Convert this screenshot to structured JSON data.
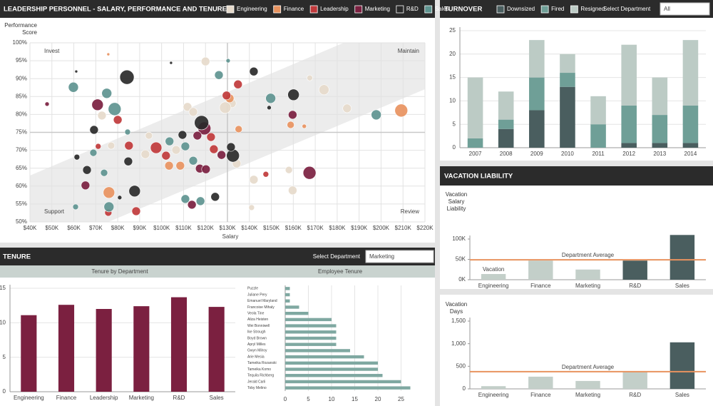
{
  "chart_data": [
    {
      "type": "scatter",
      "title": "LEADERSHIP PERSONNEL - SALARY, PERFORMANCE AND TENURE",
      "x_label": "Salary",
      "y_label": "Performance Score",
      "quadrant_labels": {
        "top_left": "Invest",
        "top_right": "Maintain",
        "bottom_left": "Support",
        "bottom_right": "Review"
      },
      "reference_x": 130000,
      "reference_y": 75,
      "xlim": [
        40000,
        220000
      ],
      "ylim": [
        50,
        100
      ],
      "grid": true,
      "legend": "top-right",
      "xticks": [
        {
          "value": 40000,
          "label": "$40K"
        },
        {
          "value": 50000,
          "label": "$50K"
        },
        {
          "value": 60000,
          "label": "$60K"
        },
        {
          "value": 70000,
          "label": "$70K"
        },
        {
          "value": 80000,
          "label": "$80K"
        },
        {
          "value": 90000,
          "label": "$90K"
        },
        {
          "value": 100000,
          "label": "$100K"
        },
        {
          "value": 110000,
          "label": "$110K"
        },
        {
          "value": 120000,
          "label": "$120K"
        },
        {
          "value": 130000,
          "label": "$130K"
        },
        {
          "value": 140000,
          "label": "$140K"
        },
        {
          "value": 150000,
          "label": "$150K"
        },
        {
          "value": 160000,
          "label": "$160K"
        },
        {
          "value": 170000,
          "label": "$170K"
        },
        {
          "value": 180000,
          "label": "$180K"
        },
        {
          "value": 190000,
          "label": "$190K"
        },
        {
          "value": 200000,
          "label": "$200K"
        },
        {
          "value": 210000,
          "label": "$210K"
        },
        {
          "value": 220000,
          "label": "$220K"
        }
      ],
      "yticks": [
        {
          "value": 50,
          "label": "50%"
        },
        {
          "value": 55,
          "label": "55%"
        },
        {
          "value": 60,
          "label": "60%"
        },
        {
          "value": 65,
          "label": "65%"
        },
        {
          "value": 70,
          "label": "70%"
        },
        {
          "value": 75,
          "label": "75%"
        },
        {
          "value": 80,
          "label": "80%"
        },
        {
          "value": 85,
          "label": "85%"
        },
        {
          "value": 90,
          "label": "90%"
        },
        {
          "value": 95,
          "label": "95%"
        },
        {
          "value": 100,
          "label": "100%"
        }
      ],
      "series": [
        {
          "name": "Engineering",
          "color": "#e6dacb",
          "x": [
            120000,
            132000,
            129000,
            111800,
            114400,
            167500,
            174000,
            184500,
            72800,
            94200,
            92600,
            106600,
            134200,
            142000,
            158000,
            159700,
            141000,
            77000
          ],
          "values": [
            94.8,
            83.1,
            81.9,
            82.1,
            80.7,
            90.2,
            86.9,
            81.7,
            79.7,
            74.1,
            68.9,
            70.1,
            66.3,
            61.8,
            64.5,
            58.8,
            54,
            71.3
          ],
          "sizes": [
            6,
            6,
            8,
            6,
            6,
            4,
            7,
            6,
            6,
            5,
            6,
            6,
            6,
            6,
            5,
            6,
            4,
            5
          ]
        },
        {
          "name": "Finance",
          "color": "#e8935f",
          "x": [
            75700,
            131000,
            209200,
            158800,
            165000,
            135100,
            103400,
            108500,
            76000
          ],
          "values": [
            96.8,
            84.5,
            81.1,
            77.1,
            76.7,
            75.9,
            65.7,
            65.7,
            58.2
          ],
          "sizes": [
            2,
            6,
            9,
            5,
            3,
            5,
            6,
            6,
            8
          ]
        },
        {
          "name": "Leadership",
          "color": "#c0393b",
          "x": [
            80000,
            134800,
            129600,
            97500,
            122500,
            123800,
            102000,
            147500,
            88400,
            75700,
            71100,
            85100
          ],
          "values": [
            78.5,
            88.4,
            85.3,
            70.7,
            73.7,
            70.3,
            68.5,
            63.3,
            53,
            52.6,
            71.1,
            71.3
          ],
          "sizes": [
            6,
            6,
            6,
            8,
            6,
            6,
            6,
            4,
            6,
            5,
            4,
            6
          ]
        },
        {
          "name": "Marketing",
          "color": "#7b2040",
          "x": [
            70800,
            47800,
            119500,
            159700,
            116300,
            127300,
            117400,
            120200,
            167400,
            113800,
            65300
          ],
          "values": [
            82.7,
            82.9,
            76.1,
            79.9,
            74.1,
            68.7,
            64.9,
            64.7,
            63.7,
            54.8,
            60.2
          ],
          "sizes": [
            8,
            3,
            9,
            6,
            6,
            6,
            6,
            6,
            9,
            6,
            6
          ]
        },
        {
          "name": "R&D",
          "color": "#2a2a2a",
          "x": [
            84200,
            69200,
            61100,
            104300,
            142000,
            118200,
            160100,
            109500,
            132500,
            131600,
            124400,
            87700,
            80900,
            66000,
            84800,
            61400,
            149000
          ],
          "values": [
            90.4,
            75.7,
            92,
            94.4,
            92,
            77.7,
            85.5,
            74.3,
            68.5,
            70.9,
            57,
            58.6,
            56.8,
            64.5,
            66.9,
            68.1,
            81.9
          ],
          "sizes": [
            10,
            6,
            2,
            2,
            6,
            10,
            8,
            6,
            9,
            6,
            6,
            8,
            3,
            6,
            6,
            4,
            3
          ]
        },
        {
          "name": "Sales",
          "color": "#5e9490",
          "x": [
            59800,
            75000,
            78600,
            126100,
            130300,
            149700,
            197800,
            103600,
            110800,
            114400,
            110800,
            117700,
            76000,
            60800,
            73800,
            68900,
            84500
          ],
          "values": [
            87.6,
            85.9,
            81.5,
            91,
            95,
            84.5,
            79.9,
            72.5,
            71.1,
            67.1,
            56.4,
            55.8,
            54.2,
            54.2,
            63.7,
            69.3,
            75.1
          ],
          "sizes": [
            7,
            7,
            9,
            6,
            3,
            7,
            7,
            6,
            6,
            6,
            6,
            6,
            7,
            4,
            5,
            5,
            4
          ]
        }
      ]
    },
    {
      "type": "bar",
      "stacked": true,
      "title": "TURNOVER",
      "filter_label": "Select Department",
      "filter_value": "All",
      "categories": [
        "2007",
        "2008",
        "2009",
        "2010",
        "2011",
        "2012",
        "2013",
        "2014"
      ],
      "ylim": [
        0,
        25
      ],
      "yticks": [
        0,
        5,
        10,
        15,
        20,
        25
      ],
      "grid": true,
      "legend": "top",
      "series": [
        {
          "name": "Downsized",
          "color": "#4a5e5f",
          "values": [
            0,
            4,
            8,
            13,
            0,
            1,
            1,
            1
          ]
        },
        {
          "name": "Fired",
          "color": "#6f9f97",
          "values": [
            2,
            2,
            7,
            3,
            5,
            8,
            6,
            8
          ]
        },
        {
          "name": "Resigned",
          "color": "#bccbc5",
          "values": [
            13,
            6,
            8,
            4,
            6,
            13,
            8,
            14
          ]
        }
      ]
    },
    {
      "type": "bar",
      "section_title": "VACATION LIABILITY",
      "y_label": "Vacation Salary Liability",
      "annotation": "Vacation",
      "categories": [
        "Engineering",
        "Finance",
        "Marketing",
        "R&D",
        "Sales"
      ],
      "values": [
        14000,
        47000,
        25000,
        47000,
        110000
      ],
      "colors": [
        "#c3cfc9",
        "#c3cfc9",
        "#c3cfc9",
        "#4a5e5f",
        "#4a5e5f"
      ],
      "average": 49000,
      "average_label": "Department Average",
      "average_color": "#e8935f",
      "ylim": [
        0,
        100000
      ],
      "yticks": [
        {
          "value": 0,
          "label": "0K"
        },
        {
          "value": 50000,
          "label": "50K"
        },
        {
          "value": 100000,
          "label": "100K"
        }
      ],
      "grid": false
    },
    {
      "type": "bar",
      "y_label": "Vacation Days",
      "categories": [
        "Engineering",
        "Finance",
        "Marketing",
        "R&D",
        "Sales"
      ],
      "values": [
        60,
        270,
        175,
        380,
        1030
      ],
      "colors": [
        "#c3cfc9",
        "#c3cfc9",
        "#c3cfc9",
        "#c3cfc9",
        "#4a5e5f"
      ],
      "average": 380,
      "average_label": "Department Average",
      "average_color": "#e8935f",
      "ylim": [
        0,
        1500
      ],
      "yticks": [
        0,
        500,
        {
          "value": 1000,
          "label": "1,000"
        },
        {
          "value": 1500,
          "label": "1,500"
        }
      ],
      "grid": false
    },
    {
      "type": "bar",
      "title": "Tenure by Department",
      "section_title": "TENURE",
      "filter_label": "Select Department",
      "filter_value": "Marketing",
      "categories": [
        "Engineering",
        "Finance",
        "Leadership",
        "Marketing",
        "R&D",
        "Sales"
      ],
      "values": [
        11.1,
        12.6,
        12,
        12.4,
        13.7,
        12.3
      ],
      "color": "#7b2040",
      "ylim": [
        0,
        15
      ],
      "yticks": [
        0,
        5,
        10,
        15
      ],
      "grid": true
    },
    {
      "type": "bar",
      "orientation": "horizontal",
      "title": "Employee Tenure",
      "categories": [
        "Puzzle",
        "Juliane Pery",
        "Emanuel Maryland",
        "Francoise Mihaly",
        "Veola Tine",
        "Aliza Heisten",
        "Wei Bonniwell",
        "Ike Strough",
        "Boyd Brown",
        "Apryl Milles",
        "Gwyn Milroy",
        "Arie Mesia",
        "Tameika Rozanski",
        "Tameika Komo",
        "Tequila Richberg",
        "Jerald Carli",
        "Toby Melino"
      ],
      "values": [
        1,
        1,
        1,
        3,
        5,
        10,
        11,
        11,
        11,
        11,
        14,
        17,
        20,
        20,
        21,
        25,
        27
      ],
      "color": "#7fa8a1",
      "xlim": [
        0,
        28
      ],
      "xticks": [
        0,
        5,
        10,
        15,
        20,
        25
      ],
      "grid": true
    }
  ]
}
